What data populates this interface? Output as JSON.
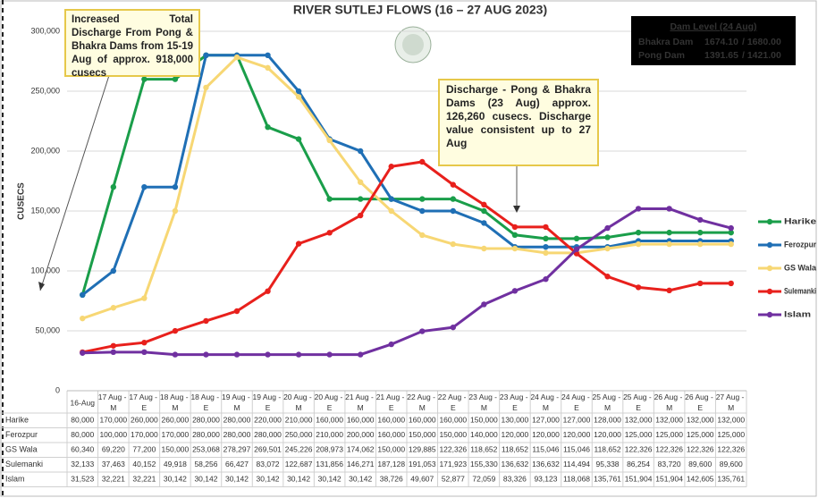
{
  "chart_data": {
    "type": "line",
    "title": "RIVER SUTLEJ FLOWS (16 – 27 AUG 2023)",
    "y_label": "CUSECS",
    "annotations": [
      "Increased Total Discharge From Pong & Bhakra Dams from 15-19 Aug of approx. 918,000 cusecs",
      "Discharge - Pong & Bhakra Dams (23 Aug) approx. 126,260 cusecs. Discharge value consistent up to 27 Aug"
    ],
    "dam_level": {
      "title": "Dam Level (24 Aug)",
      "rows": [
        [
          "Bhakra Dam",
          "1674.10",
          "/ 1680.00"
        ],
        [
          "Pong Dam",
          "1391.65",
          "/ 1421.00"
        ]
      ]
    },
    "categories": [
      "16-Aug",
      "17 Aug - M",
      "17 Aug - E",
      "18 Aug - M",
      "18 Aug - E",
      "19 Aug - M",
      "19 Aug - E",
      "20 Aug - M",
      "20 Aug - E",
      "21 Aug - M",
      "21 Aug - E",
      "22 Aug - M",
      "22 Aug - E",
      "23 Aug - M",
      "23 Aug - E",
      "24 Aug - M",
      "24 Aug - E",
      "25 Aug - M",
      "25 Aug - E",
      "26 Aug - M",
      "26 Aug - E",
      "27 Aug - M"
    ],
    "series": [
      {
        "name": "Harike",
        "color": "#1a9e4a",
        "values": [
          80000,
          170000,
          260000,
          260000,
          280000,
          280000,
          220000,
          210000,
          160000,
          160000,
          160000,
          160000,
          160000,
          150000,
          130000,
          127000,
          127000,
          128000,
          132000,
          132000,
          132000,
          132000
        ],
        "value_labels": [
          "80,000",
          "170,000",
          "260,000",
          "260,000",
          "280,000",
          "280,000",
          "220,000",
          "210,000",
          "160,000",
          "160,000",
          "160,000",
          "160,000",
          "160,000",
          "150,000",
          "130,000",
          "127,000",
          "127,000",
          "128,000",
          "132,000",
          "132,000",
          "132,000",
          "132,000"
        ]
      },
      {
        "name": "Ferozpur",
        "color": "#1f6fb5",
        "values": [
          80000,
          100000,
          170000,
          170000,
          280000,
          280000,
          280000,
          250000,
          210000,
          200000,
          160000,
          150000,
          150000,
          140000,
          120000,
          120000,
          120000,
          120000,
          125000,
          125000,
          125000,
          125000
        ],
        "value_labels": [
          "80,000",
          "100,000",
          "170,000",
          "170,000",
          "280,000",
          "280,000",
          "280,000",
          "250,000",
          "210,000",
          "200,000",
          "160,000",
          "150,000",
          "150,000",
          "140,000",
          "120,000",
          "120,000",
          "120,000",
          "120,000",
          "125,000",
          "125,000",
          "125,000",
          "125,000"
        ]
      },
      {
        "name": "GS Wala",
        "color": "#f7d774",
        "values": [
          60340,
          69220,
          77200,
          150000,
          253068,
          278297,
          269501,
          245226,
          208973,
          174062,
          150000,
          129885,
          122326,
          118652,
          118652,
          115046,
          115046,
          118652,
          122326,
          122326,
          122326,
          122326
        ],
        "value_labels": [
          "60,340",
          "69,220",
          "77,200",
          "150,000",
          "253,068",
          "278,297",
          "269,501",
          "245,226",
          "208,973",
          "174,062",
          "150,000",
          "129,885",
          "122,326",
          "118,652",
          "118,652",
          "115,046",
          "115,046",
          "118,652",
          "122,326",
          "122,326",
          "122,326",
          "122,326"
        ]
      },
      {
        "name": "Sulemanki",
        "color": "#e8201c",
        "values": [
          32133,
          37463,
          40152,
          49918,
          58256,
          66427,
          83072,
          122687,
          131856,
          146271,
          187128,
          191053,
          171923,
          155330,
          136632,
          136632,
          114494,
          95338,
          86254,
          83720,
          89600,
          89600
        ],
        "value_labels": [
          "32,133",
          "37,463",
          "40,152",
          "49,918",
          "58,256",
          "66,427",
          "83,072",
          "122,687",
          "131,856",
          "146,271",
          "187,128",
          "191,053",
          "171,923",
          "155,330",
          "136,632",
          "136,632",
          "114,494",
          "95,338",
          "86,254",
          "83,720",
          "89,600",
          "89,600"
        ]
      },
      {
        "name": "Islam",
        "color": "#7030a0",
        "values": [
          31523,
          32221,
          32221,
          30142,
          30142,
          30142,
          30142,
          30142,
          30142,
          30142,
          38726,
          49607,
          52877,
          72059,
          83326,
          93123,
          118068,
          135761,
          151904,
          151904,
          142605,
          135761
        ],
        "value_labels": [
          "31,523",
          "32,221",
          "32,221",
          "30,142",
          "30,142",
          "30,142",
          "30,142",
          "30,142",
          "30,142",
          "30,142",
          "38,726",
          "49,607",
          "52,877",
          "72,059",
          "83,326",
          "93,123",
          "118,068",
          "135,761",
          "151,904",
          "151,904",
          "142,605",
          "135,761"
        ]
      }
    ],
    "ylim": [
      0,
      300000
    ],
    "yticks": [
      0,
      {
        "value": 50000,
        "label": "50,000"
      },
      {
        "value": 100000,
        "label": "100,000"
      },
      {
        "value": 150000,
        "label": "150,000"
      },
      {
        "value": 200000,
        "label": "200,000"
      },
      {
        "value": 250000,
        "label": "250,000"
      },
      {
        "value": 300000,
        "label": "300,000"
      }
    ],
    "grid": true,
    "legend": "right"
  }
}
